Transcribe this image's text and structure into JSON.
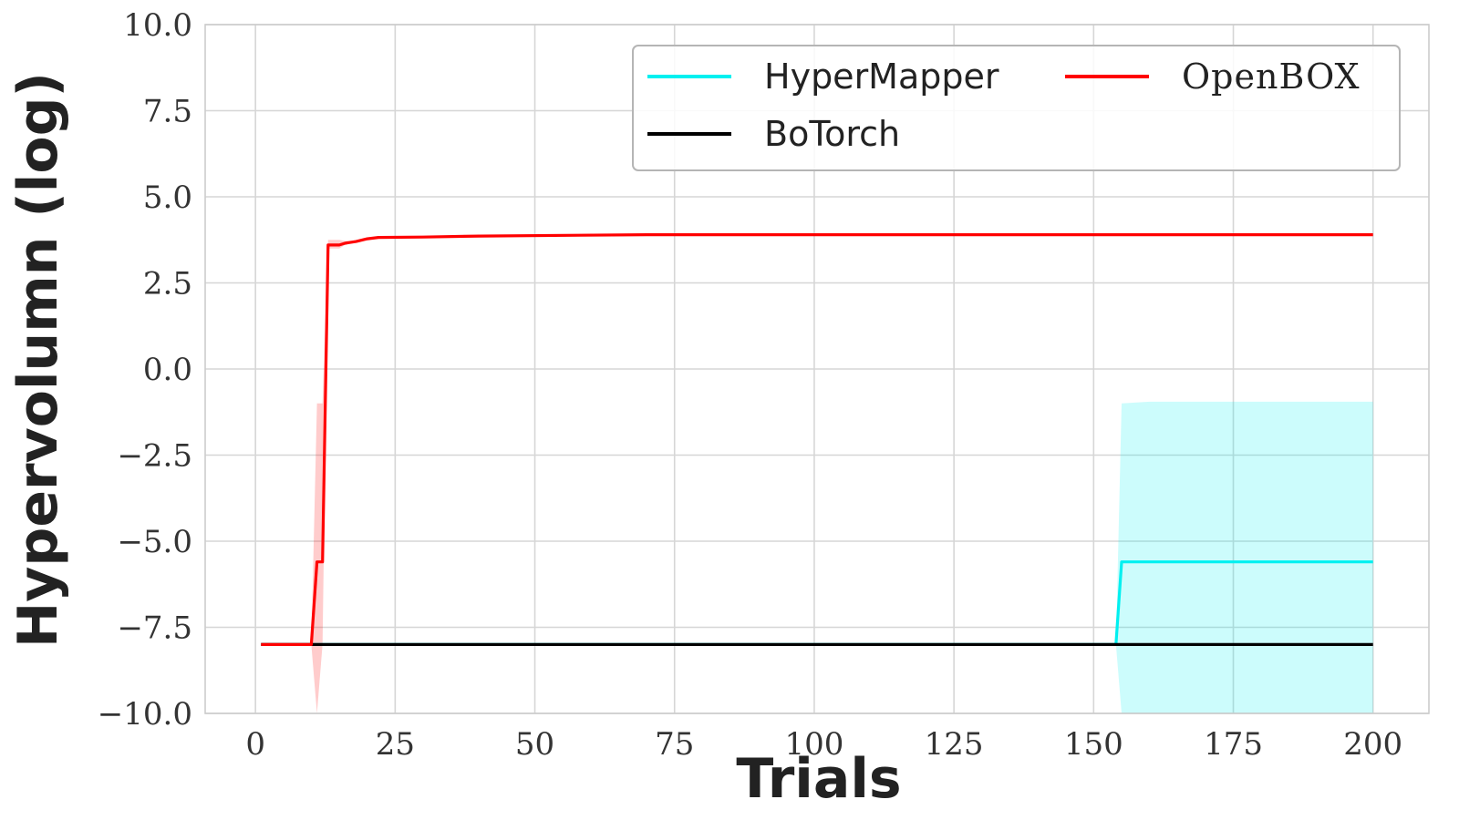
{
  "chart_data": {
    "type": "line",
    "xlabel": "Trials",
    "ylabel": "Hypervolumn (log)",
    "xlim": [
      -9,
      210
    ],
    "ylim": [
      -10.0,
      10.0
    ],
    "xticks": [
      0,
      25,
      50,
      75,
      100,
      125,
      150,
      175,
      200
    ],
    "xtick_labels": [
      "0",
      "25",
      "50",
      "75",
      "100",
      "125",
      "150",
      "175",
      "200"
    ],
    "yticks": [
      -10.0,
      -7.5,
      -5.0,
      -2.5,
      0.0,
      2.5,
      5.0,
      7.5,
      10.0
    ],
    "ytick_labels": [
      "−10.0",
      "−7.5",
      "−5.0",
      "−2.5",
      "0.0",
      "2.5",
      "5.0",
      "7.5",
      "10.0"
    ],
    "grid": true,
    "legend_position": "top-right",
    "series": [
      {
        "name": "HyperMapper",
        "color": "#00f0f0",
        "x": [
          1,
          154,
          155,
          200
        ],
        "y": [
          -8.0,
          -8.0,
          -5.6,
          -5.6
        ],
        "band": {
          "x": [
            154,
            155,
            160,
            200
          ],
          "lower": [
            -8.0,
            -10.0,
            -10.0,
            -10.0
          ],
          "upper": [
            -8.0,
            -1.0,
            -0.95,
            -0.95
          ]
        }
      },
      {
        "name": "BoTorch",
        "color": "#000000",
        "x": [
          1,
          200
        ],
        "y": [
          -8.0,
          -8.0
        ]
      },
      {
        "name": "OpenBOX",
        "color": "#ff0000",
        "x": [
          1,
          10,
          11,
          12,
          13,
          15,
          16,
          18,
          20,
          22,
          30,
          40,
          70,
          200
        ],
        "y": [
          -8.0,
          -8.0,
          -5.6,
          -5.6,
          3.6,
          3.6,
          3.65,
          3.7,
          3.78,
          3.82,
          3.83,
          3.86,
          3.9,
          3.9
        ],
        "band": {
          "x": [
            10,
            11,
            12,
            13,
            15,
            16,
            18,
            22,
            30
          ],
          "lower": [
            -8.0,
            -10.0,
            -8.0,
            3.5,
            3.5,
            3.6,
            3.68,
            3.8,
            3.82
          ],
          "upper": [
            -8.0,
            -1.0,
            -1.0,
            3.75,
            3.75,
            3.72,
            3.74,
            3.84,
            3.84
          ]
        }
      }
    ]
  }
}
